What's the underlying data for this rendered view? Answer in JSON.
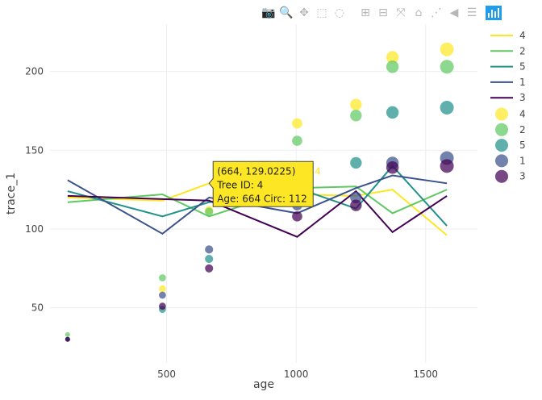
{
  "modebar": {
    "buttons": [
      {
        "name": "camera-icon",
        "glyph": "📷",
        "active": false
      },
      {
        "name": "zoom-icon",
        "glyph": "🔍",
        "active": true
      },
      {
        "name": "pan-icon",
        "glyph": "✥",
        "active": false
      },
      {
        "name": "box-select-icon",
        "glyph": "⬚",
        "active": false
      },
      {
        "name": "lasso-select-icon",
        "glyph": "◌",
        "active": false
      },
      {
        "name": "gap",
        "glyph": "",
        "active": false
      },
      {
        "name": "zoom-in-icon",
        "glyph": "⊞",
        "active": false
      },
      {
        "name": "zoom-out-icon",
        "glyph": "⊟",
        "active": false
      },
      {
        "name": "autoscale-icon",
        "glyph": "⤧",
        "active": false
      },
      {
        "name": "reset-axes-icon",
        "glyph": "⌂",
        "active": false
      },
      {
        "name": "spike-lines-icon",
        "glyph": "⋰",
        "active": false
      },
      {
        "name": "hover-closest-icon",
        "glyph": "◀",
        "active": false
      },
      {
        "name": "hover-compare-icon",
        "glyph": "☰",
        "active": false
      }
    ],
    "logo_icon": "plotly-logo-icon"
  },
  "chart_data": {
    "type": "scatter",
    "xlabel": "age",
    "ylabel": "trace_1",
    "xlim": [
      50,
      1700
    ],
    "ylim": [
      15,
      230
    ],
    "xticks": [
      500,
      1000,
      1500
    ],
    "yticks": [
      50,
      100,
      150,
      200
    ],
    "grid": true,
    "legend_position": "right",
    "line_series": [
      {
        "name": "4",
        "color": "#fde725",
        "x": [
          118,
          484,
          664,
          1004,
          1231,
          1372,
          1582
        ],
        "y": [
          120,
          118,
          129,
          122,
          121,
          125,
          96
        ]
      },
      {
        "name": "2",
        "color": "#5ec962",
        "x": [
          118,
          484,
          664,
          1004,
          1231,
          1372,
          1582
        ],
        "y": [
          117,
          122,
          108,
          126,
          127,
          110,
          125
        ]
      },
      {
        "name": "5",
        "color": "#21918c",
        "x": [
          118,
          484,
          664,
          1004,
          1231,
          1372,
          1582
        ],
        "y": [
          124,
          108,
          117,
          126,
          113,
          140,
          102
        ]
      },
      {
        "name": "1",
        "color": "#3b528b",
        "x": [
          118,
          484,
          664,
          1004,
          1231,
          1372,
          1582
        ],
        "y": [
          131,
          97,
          120,
          110,
          126,
          134,
          129
        ]
      },
      {
        "name": "3",
        "color": "#440154",
        "x": [
          118,
          484,
          664,
          1004,
          1231,
          1372,
          1582
        ],
        "y": [
          121,
          119,
          118,
          95,
          124,
          98,
          121
        ]
      }
    ],
    "marker_series": [
      {
        "name": "4",
        "color": "#fde725",
        "x": [
          118,
          484,
          664,
          1004,
          1231,
          1372,
          1582
        ],
        "y": [
          30,
          62,
          112,
          167,
          179,
          209,
          214
        ]
      },
      {
        "name": "2",
        "color": "#5ec962",
        "x": [
          118,
          484,
          664,
          1004,
          1231,
          1372,
          1582
        ],
        "y": [
          33,
          69,
          111,
          156,
          172,
          203,
          203
        ]
      },
      {
        "name": "5",
        "color": "#21918c",
        "x": [
          118,
          484,
          664,
          1004,
          1231,
          1372,
          1582
        ],
        "y": [
          30,
          49,
          81,
          125,
          142,
          174,
          177
        ]
      },
      {
        "name": "1",
        "color": "#3b528b",
        "x": [
          118,
          484,
          664,
          1004,
          1231,
          1372,
          1582
        ],
        "y": [
          30,
          58,
          87,
          115,
          120,
          142,
          145
        ]
      },
      {
        "name": "3",
        "color": "#440154",
        "x": [
          118,
          484,
          664,
          1004,
          1231,
          1372,
          1582
        ],
        "y": [
          30,
          51,
          75,
          108,
          115,
          139,
          140
        ]
      }
    ],
    "tooltip": {
      "lines": [
        "(664, 129.0225)",
        "Tree ID:  4",
        "Age:  664 Circ:  112"
      ],
      "side_label": "4",
      "x": 664,
      "y": 129.0225,
      "color": "#fde725"
    }
  }
}
